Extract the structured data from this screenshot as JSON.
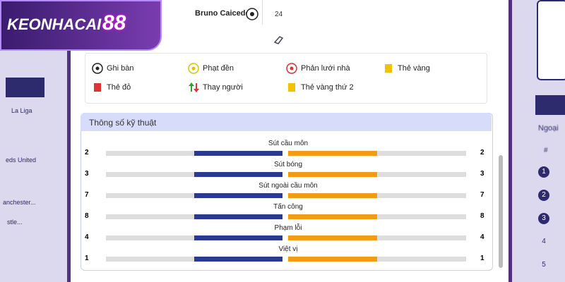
{
  "logo": {
    "text": "KEONHACAI",
    "number": "88"
  },
  "event": {
    "player": "Bruno Caicedo",
    "minute": "24"
  },
  "legend": [
    "Ghi bàn",
    "Phạt đền",
    "Phản lưới nhà",
    "Thẻ vàng",
    "Thẻ đỏ",
    "Thay người",
    "Thẻ vàng thứ 2"
  ],
  "stats": {
    "title": "Thông số kỹ thuật",
    "rows": [
      {
        "label": "Sút cầu môn",
        "home": 2,
        "away": 2
      },
      {
        "label": "Sút bóng",
        "home": 3,
        "away": 3
      },
      {
        "label": "Sút ngoài cầu môn",
        "home": 7,
        "away": 7
      },
      {
        "label": "Tấn công",
        "home": 8,
        "away": 8
      },
      {
        "label": "Phạm lỗi",
        "home": 4,
        "away": 4
      },
      {
        "label": "Việt vị",
        "home": 1,
        "away": 1
      }
    ]
  },
  "left_side": [
    "La Liga",
    "eds United",
    "anchester...",
    "stle..."
  ],
  "right_side": {
    "header": "Ngoại",
    "hash": "#",
    "ranks": [
      "1",
      "2",
      "3",
      "4",
      "5"
    ]
  }
}
